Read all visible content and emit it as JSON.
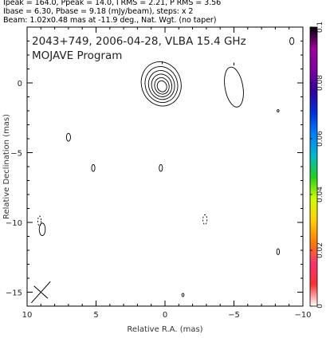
{
  "header": {
    "line1": "Ipeak = 164.0, Ppeak = 14.0, I RMS = 2.21, P RMS = 3.56",
    "line2": "Ibase = 6.30, Pbase = 9.18 (mJy/beam), steps: x 2",
    "line3": "Beam: 1.02x0.48 mas at -11.9 deg., Nat. Wgt. (no taper)"
  },
  "chart_data": {
    "type": "contour",
    "title": "2043+749, 2006-04-28, VLBA 15.4 GHz",
    "subtitle": "MOJAVE Program",
    "xlabel": "Relative R.A. (mas)",
    "ylabel": "Relative Declination (mas)",
    "xlim": [
      10,
      -10
    ],
    "ylim": [
      -16,
      4
    ],
    "xticks": [
      10,
      5,
      0,
      -5,
      -10
    ],
    "xtick_labels": [
      "10",
      "5",
      "0",
      "−5",
      "−10"
    ],
    "yticks": [
      0,
      -5,
      -10,
      -15
    ],
    "ytick_labels": [
      "0",
      "−5",
      "−10",
      "−15"
    ],
    "colorbar": {
      "range": [
        0,
        0.1
      ],
      "ticks": [
        0,
        0.02,
        0.04,
        0.06,
        0.08,
        0.1
      ],
      "tick_labels": [
        "0",
        "0.02",
        "0.04",
        "0.06",
        "0.08",
        "0.1"
      ],
      "colors": [
        "#ffffff",
        "#ff3030",
        "#ff3070",
        "#ff8000",
        "#ffd000",
        "#d0ff00",
        "#20d020",
        "#00b8c8",
        "#0080ff",
        "#0030e0",
        "#3000a0",
        "#8000a0",
        "#a000a0",
        "#000000"
      ]
    },
    "core": {
      "x": 0.2,
      "y": -0.3,
      "contours": [
        [
          0.55,
          1.6
        ],
        [
          0.45,
          1.3
        ],
        [
          0.36,
          1.05
        ],
        [
          0.28,
          0.82
        ],
        [
          0.2,
          0.6
        ],
        [
          0.13,
          0.4
        ]
      ]
    },
    "jet": {
      "x": -5.0,
      "y": -0.3,
      "rx": 0.65,
      "ry": 1.45,
      "angle": -10
    },
    "blobs": [
      {
        "x": 7.0,
        "y": -3.9,
        "rx": 0.15,
        "ry": 0.28
      },
      {
        "x": 5.2,
        "y": -6.1,
        "rx": 0.12,
        "ry": 0.25
      },
      {
        "x": 0.3,
        "y": -6.1,
        "rx": 0.12,
        "ry": 0.25
      },
      {
        "x": 8.9,
        "y": -10.5,
        "rx": 0.22,
        "ry": 0.45
      },
      {
        "x": -8.2,
        "y": -12.1,
        "rx": 0.1,
        "ry": 0.22
      },
      {
        "x": -9.2,
        "y": 3.0,
        "rx": 0.15,
        "ry": 0.25
      },
      {
        "x": -1.3,
        "y": -15.2,
        "rx": 0.08,
        "ry": 0.12
      },
      {
        "x": -8.2,
        "y": -2.0,
        "rx": 0.07,
        "ry": 0.08
      }
    ],
    "dashed_blobs": [
      {
        "x": 9.1,
        "y": -9.9,
        "rx": 0.12,
        "ry": 0.35
      },
      {
        "x": -2.9,
        "y": -9.8,
        "rx": 0.15,
        "ry": 0.35
      }
    ],
    "beam": {
      "x": 9.0,
      "y": -15.0,
      "major": 1.02,
      "minor": 0.48,
      "pa": -11.9
    }
  }
}
